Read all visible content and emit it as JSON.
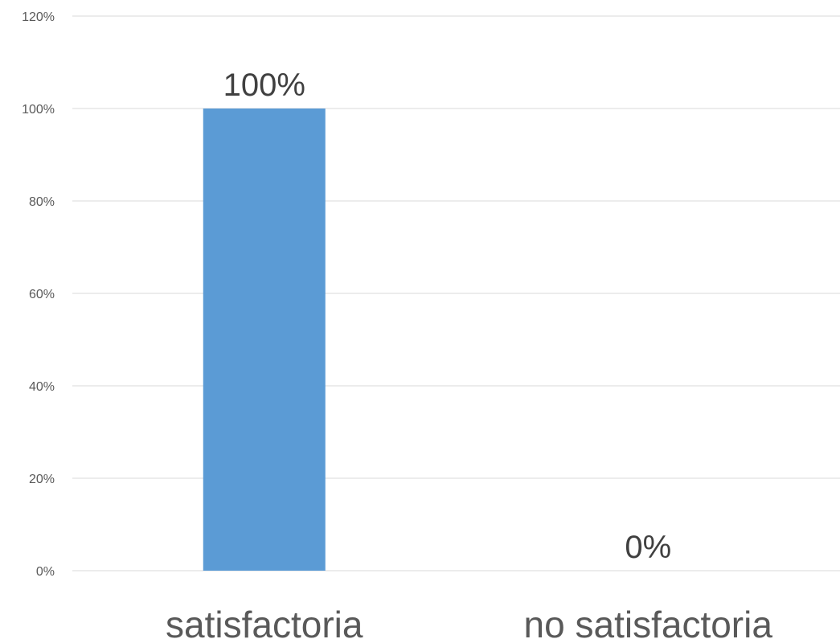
{
  "chart_data": {
    "type": "bar",
    "title": "",
    "xlabel": "",
    "ylabel": "",
    "categories": [
      "satisfactoria",
      "no satisfactoria"
    ],
    "values": [
      100,
      0
    ],
    "data_labels": [
      "100%",
      "0%"
    ],
    "ylim": [
      0,
      120
    ],
    "y_ticks": [
      0,
      20,
      40,
      60,
      80,
      100,
      120
    ],
    "y_tick_labels": [
      "0%",
      "20%",
      "40%",
      "60%",
      "80%",
      "100%",
      "120%"
    ],
    "grid": true,
    "legend": "none",
    "colors": {
      "bar": "#5b9bd5",
      "grid": "#d9d9d9",
      "axis_text": "#595959",
      "data_label_text": "#404040"
    }
  }
}
